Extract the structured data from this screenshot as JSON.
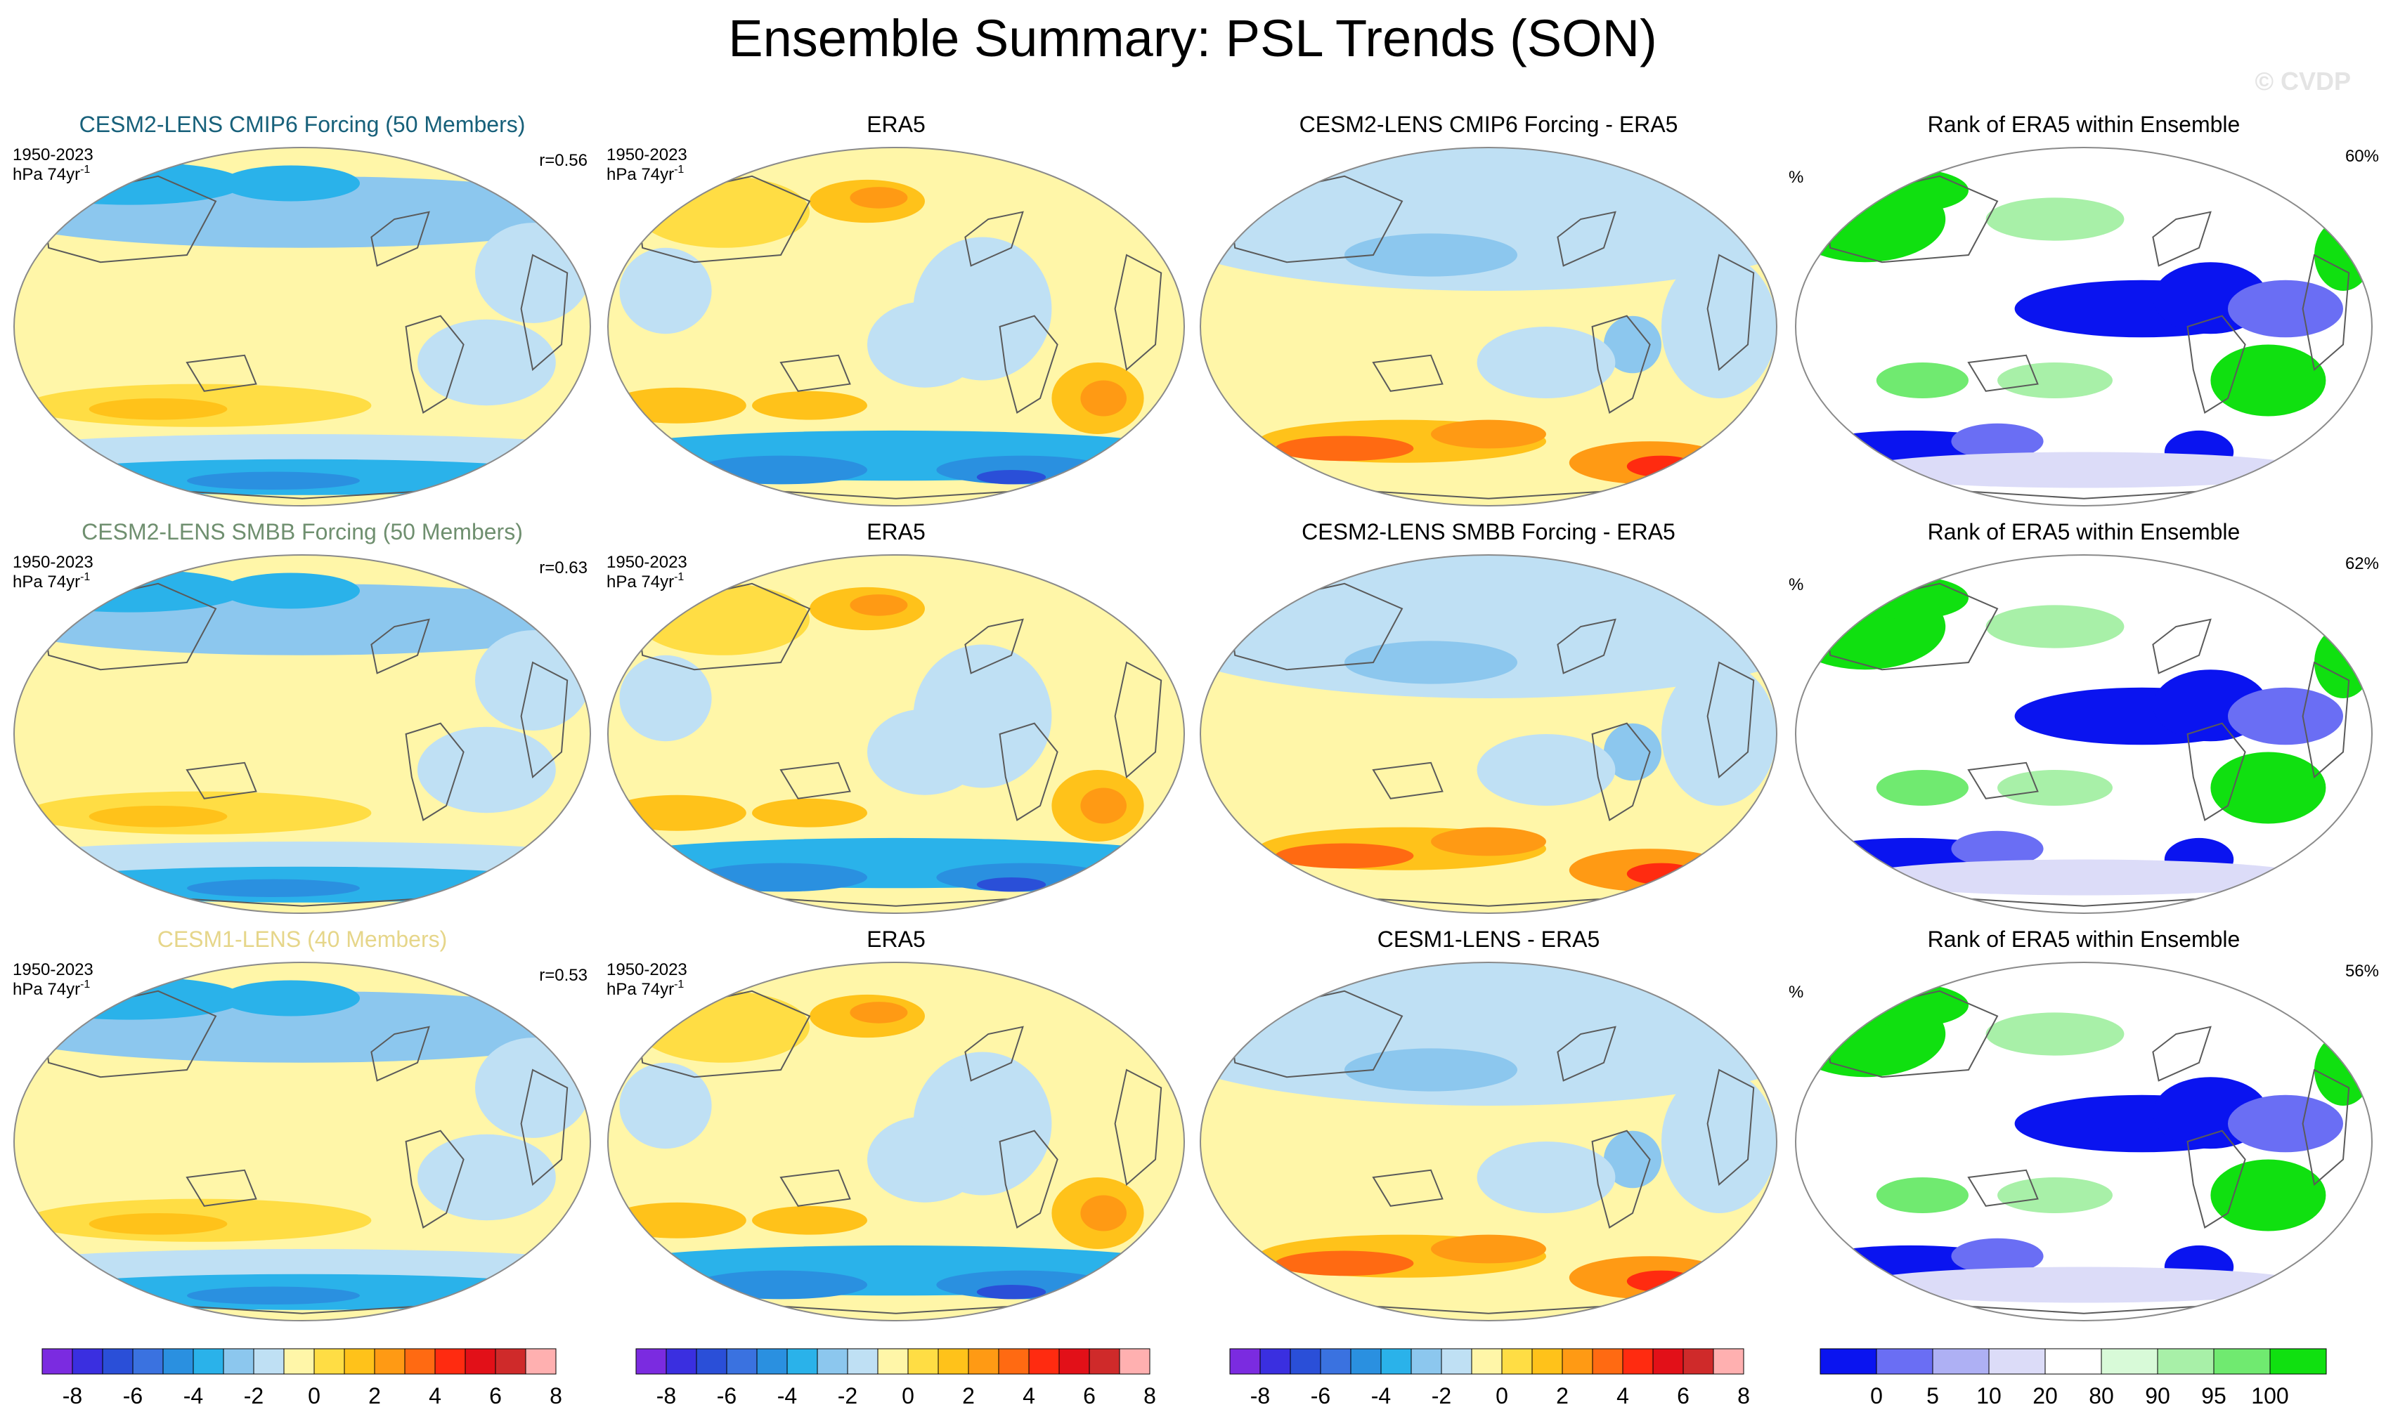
{
  "title": "Ensemble Summary: PSL Trends (SON)",
  "watermark": "© CVDP",
  "colors": {
    "title_row1": "#17607a",
    "title_row2": "#6f8f6f",
    "title_row3": "#e6d68a",
    "trend_scale": [
      "#7b2be0",
      "#3a2fe0",
      "#2a4fd8",
      "#3a72e0",
      "#2a90e0",
      "#2ab2ea",
      "#8cc7ee",
      "#bfe0f4",
      "#fff6a8",
      "#ffdd44",
      "#ffc21a",
      "#ff9a14",
      "#ff6a12",
      "#ff2b10",
      "#e21018",
      "#cf2a2a",
      "#ffb0b0"
    ],
    "rank_scale": [
      "#0a14f0",
      "#6a6ef4",
      "#aeb0f4",
      "#dcdcf8",
      "#ffffff",
      "#d8fad8",
      "#a8f0a8",
      "#70ea70",
      "#10e010"
    ],
    "coast": "#5a5a5a",
    "frame": "#8a8a8a"
  },
  "legend": {
    "trend_ticks": [
      "-8",
      "-6",
      "-4",
      "-2",
      "0",
      "2",
      "4",
      "6",
      "8"
    ],
    "rank_ticks": [
      "0",
      "5",
      "10",
      "20",
      "80",
      "90",
      "95",
      "100"
    ]
  },
  "rows": [
    {
      "panels": [
        {
          "title": "CESM2-LENS CMIP6 Forcing (50 Members)",
          "years": "1950-2023",
          "units": "hPa 74yr",
          "units_sup": "-1",
          "corr": "r=0.56",
          "type": "model"
        },
        {
          "title": "ERA5",
          "years": "1950-2023",
          "units": "hPa 74yr",
          "units_sup": "-1",
          "type": "obs"
        },
        {
          "title": "CESM2-LENS CMIP6 Forcing - ERA5",
          "type": "diff"
        },
        {
          "title": "Rank of ERA5 within Ensemble",
          "pct_label": "%",
          "pct_value": "60%",
          "type": "rank"
        }
      ]
    },
    {
      "panels": [
        {
          "title": "CESM2-LENS SMBB Forcing (50 Members)",
          "years": "1950-2023",
          "units": "hPa 74yr",
          "units_sup": "-1",
          "corr": "r=0.63",
          "type": "model"
        },
        {
          "title": "ERA5",
          "years": "1950-2023",
          "units": "hPa 74yr",
          "units_sup": "-1",
          "type": "obs"
        },
        {
          "title": "CESM2-LENS SMBB Forcing - ERA5",
          "type": "diff"
        },
        {
          "title": "Rank of ERA5 within Ensemble",
          "pct_label": "%",
          "pct_value": "62%",
          "type": "rank"
        }
      ]
    },
    {
      "panels": [
        {
          "title": "CESM1-LENS (40 Members)",
          "years": "1950-2023",
          "units": "hPa 74yr",
          "units_sup": "-1",
          "corr": "r=0.53",
          "type": "model"
        },
        {
          "title": "ERA5",
          "years": "1950-2023",
          "units": "hPa 74yr",
          "units_sup": "-1",
          "type": "obs"
        },
        {
          "title": "CESM1-LENS - ERA5",
          "type": "diff"
        },
        {
          "title": "Rank of ERA5 within Ensemble",
          "pct_label": "%",
          "pct_value": "56%",
          "type": "rank"
        }
      ]
    }
  ],
  "chart_data": {
    "type": "heatmap",
    "title": "Ensemble Summary: PSL Trends (SON)",
    "projection": "Robinson, Pacific-centered (global)",
    "variable": "PSL trend",
    "period": "1950-2023",
    "units": "hPa 74yr-1",
    "trend_colorbar": {
      "min": -8,
      "max": 8,
      "step": 1,
      "ticks": [
        -8,
        -6,
        -4,
        -2,
        0,
        2,
        4,
        6,
        8
      ]
    },
    "rank_colorbar": {
      "ticks": [
        0,
        5,
        10,
        20,
        80,
        90,
        95,
        100
      ],
      "units": "%"
    },
    "pattern_correlations": [
      {
        "model": "CESM2-LENS CMIP6 Forcing (50 Members)",
        "r": 0.56
      },
      {
        "model": "CESM2-LENS SMBB Forcing (50 Members)",
        "r": 0.63
      },
      {
        "model": "CESM1-LENS (40 Members)",
        "r": 0.53
      }
    ],
    "rank_area_percent": [
      {
        "model": "CESM2-LENS CMIP6 Forcing",
        "value": 60
      },
      {
        "model": "CESM2-LENS SMBB Forcing",
        "value": 62
      },
      {
        "model": "CESM1-LENS",
        "value": 56
      }
    ]
  }
}
